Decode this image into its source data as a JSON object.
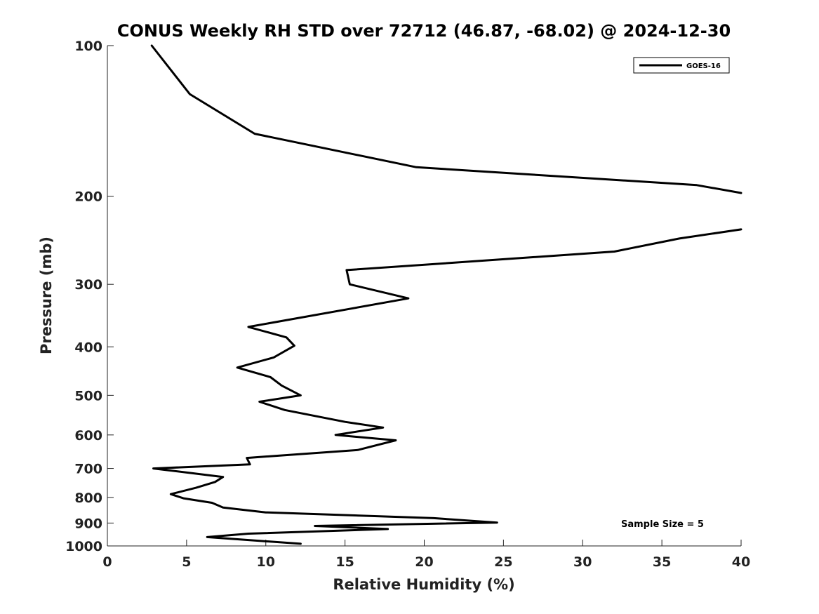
{
  "chart_data": {
    "type": "line",
    "title": "CONUS Weekly RH STD over 72712 (46.87, -68.02) @ 2024-12-30",
    "xlabel": "Relative Humidity (%)",
    "ylabel": "Pressure (mb)",
    "xlim": [
      0,
      40
    ],
    "ylim": [
      100,
      1000
    ],
    "yscale": "log",
    "y_reversed": true,
    "grid": false,
    "legend_position": "top-right",
    "x_ticks": [
      0,
      5,
      10,
      15,
      20,
      25,
      30,
      35,
      40
    ],
    "x_tick_labels": [
      "0",
      "5",
      "10",
      "15",
      "20",
      "25",
      "30",
      "35",
      "40"
    ],
    "y_ticks": [
      100,
      200,
      300,
      400,
      500,
      600,
      700,
      800,
      900,
      1000
    ],
    "y_tick_labels": [
      "100",
      "200",
      "300",
      "400",
      "500",
      "600",
      "700",
      "800",
      "900",
      "1000"
    ],
    "annotation": "Sample Size = 5",
    "series": [
      {
        "name": "GOES-16",
        "color": "#000000",
        "points": [
          [
            2.8,
            100
          ],
          [
            5.2,
            125
          ],
          [
            9.3,
            150
          ],
          [
            19.5,
            175
          ],
          [
            37.2,
            190
          ],
          [
            40.0,
            197
          ],
          [
            null,
            null
          ],
          [
            40.0,
            233
          ],
          [
            36.1,
            243
          ],
          [
            32.0,
            258
          ],
          [
            15.1,
            281
          ],
          [
            15.3,
            300
          ],
          [
            19.0,
            320
          ],
          [
            8.9,
            365
          ],
          [
            11.3,
            383
          ],
          [
            11.8,
            398
          ],
          [
            10.5,
            420
          ],
          [
            8.2,
            440
          ],
          [
            10.3,
            460
          ],
          [
            11.0,
            478
          ],
          [
            12.2,
            500
          ],
          [
            9.6,
            515
          ],
          [
            11.2,
            535
          ],
          [
            15.0,
            565
          ],
          [
            17.4,
            580
          ],
          [
            14.4,
            600
          ],
          [
            18.2,
            615
          ],
          [
            15.8,
            643
          ],
          [
            8.8,
            667
          ],
          [
            9.0,
            687
          ],
          [
            2.9,
            700
          ],
          [
            7.3,
            728
          ],
          [
            6.8,
            745
          ],
          [
            5.6,
            765
          ],
          [
            4.0,
            788
          ],
          [
            4.8,
            803
          ],
          [
            6.6,
            820
          ],
          [
            7.3,
            838
          ],
          [
            10.0,
            857
          ],
          [
            20.6,
            880
          ],
          [
            24.6,
            898
          ],
          [
            13.1,
            912
          ],
          [
            17.7,
            925
          ],
          [
            8.9,
            945
          ],
          [
            6.3,
            960
          ],
          [
            12.2,
            990
          ]
        ]
      }
    ]
  }
}
